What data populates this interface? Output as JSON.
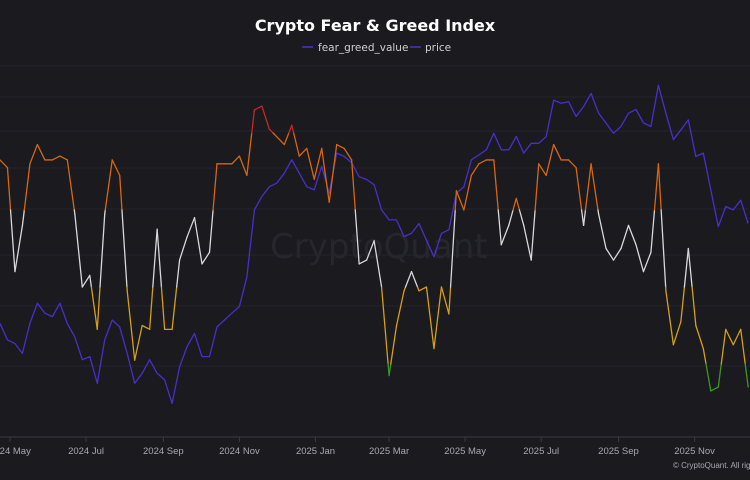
{
  "chart_data": {
    "type": "line",
    "title": "Crypto Fear & Greed Index",
    "legend": [
      "fear_greed_value",
      "price"
    ],
    "legend_placement": "top-center",
    "x_start": "2024-04-23",
    "x_step_days": 6,
    "x_tick_labels": [
      "2024 May",
      "2024 Jul",
      "2024 Sep",
      "2024 Nov",
      "2025 Jan",
      "2025 Mar",
      "2025 May",
      "2025 Jul",
      "2025 Sep",
      "2025 Nov"
    ],
    "x_tick_dates": [
      "2024-05-01",
      "2024-07-01",
      "2024-09-01",
      "2024-11-01",
      "2025-01-01",
      "2025-03-01",
      "2025-05-01",
      "2025-07-01",
      "2025-09-01",
      "2025-11-01"
    ],
    "grid": true,
    "series": [
      {
        "name": "fear_greed_value",
        "ylim": [
          0,
          100
        ],
        "zones": [
          {
            "min": 80,
            "color": "#c62828"
          },
          {
            "min": 60,
            "color": "#d9670f"
          },
          {
            "min": 40,
            "color": "#d8d8dc"
          },
          {
            "min": 20,
            "color": "#d4a017"
          },
          {
            "min": 0,
            "color": "#3a9a1c"
          }
        ],
        "values": [
          73,
          71,
          44,
          56,
          72,
          77,
          73,
          73,
          74,
          73,
          59,
          40,
          43,
          29,
          59,
          73,
          69,
          39,
          21,
          30,
          29,
          55,
          29,
          29,
          47,
          53,
          58,
          46,
          49,
          72,
          72,
          72,
          74,
          69,
          86,
          87,
          81,
          79,
          77,
          82,
          74,
          76,
          68,
          76,
          62,
          77,
          76,
          73,
          46,
          47,
          52,
          40,
          17,
          30,
          39,
          44,
          39,
          40,
          24,
          40,
          33,
          65,
          60,
          69,
          72,
          73,
          73,
          51,
          56,
          63,
          56,
          47,
          72,
          69,
          77,
          73,
          73,
          71,
          56,
          72,
          59,
          50,
          47,
          50,
          56,
          51,
          44,
          49,
          72,
          39,
          25,
          31,
          50,
          30,
          24,
          13,
          14,
          29,
          25,
          29,
          14
        ]
      },
      {
        "name": "price",
        "color": "#4a2fc9",
        "scale": "log",
        "unit": "USD (thousands)",
        "values": [
          66.0,
          63.2,
          62.6,
          61.0,
          66.0,
          69.6,
          67.8,
          67.2,
          69.6,
          66.0,
          63.7,
          60.0,
          60.5,
          56.4,
          63.2,
          66.6,
          65.4,
          61.0,
          56.4,
          57.9,
          60.0,
          57.9,
          56.9,
          53.5,
          58.9,
          62.1,
          64.3,
          60.5,
          60.5,
          65.4,
          66.6,
          67.8,
          69.0,
          74.6,
          88.9,
          92.1,
          94.5,
          95.4,
          97.9,
          101.4,
          97.9,
          94.5,
          93.7,
          99.7,
          92.9,
          103.2,
          102.3,
          100.6,
          97.0,
          96.3,
          95.0,
          88.9,
          86.6,
          86.6,
          82.9,
          83.6,
          85.8,
          82.1,
          78.6,
          83.6,
          84.4,
          92.9,
          94.5,
          101.4,
          102.7,
          104.1,
          108.7,
          104.1,
          104.1,
          107.8,
          103.2,
          105.9,
          105.9,
          107.8,
          118.6,
          117.6,
          118.1,
          113.6,
          116.6,
          120.7,
          114.6,
          111.7,
          108.7,
          110.7,
          114.6,
          115.7,
          111.7,
          110.7,
          123.3,
          114.6,
          106.9,
          109.7,
          112.6,
          102.3,
          103.2,
          93.7,
          85.1,
          89.7,
          88.9,
          91.2,
          85.8
        ]
      }
    ]
  },
  "watermark": "CryptoQuant",
  "copyright": "© CryptoQuant. All rights reserved."
}
